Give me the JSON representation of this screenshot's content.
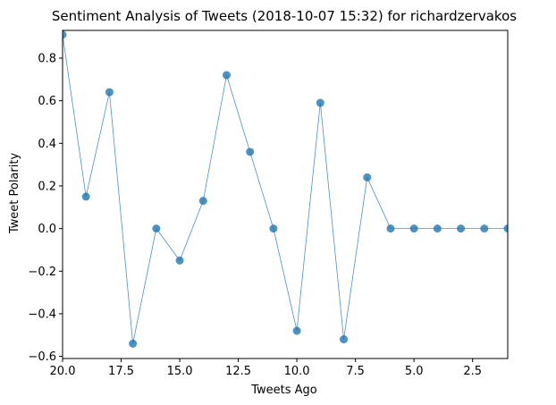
{
  "chart_data": {
    "type": "line",
    "title": "Sentiment Analysis of Tweets (2018-10-07 15:32) for richardzervakos",
    "xlabel": "Tweets Ago",
    "ylabel": "Tweet Polarity",
    "x_inverted": true,
    "xlim": [
      20,
      1
    ],
    "ylim": [
      -0.61,
      0.93
    ],
    "xticks": [
      20.0,
      17.5,
      15.0,
      12.5,
      10.0,
      7.5,
      5.0,
      2.5
    ],
    "xtick_labels": [
      "20.0",
      "17.5",
      "15.0",
      "12.5",
      "10.0",
      "7.5",
      "5.0",
      "2.5"
    ],
    "yticks": [
      -0.6,
      -0.4,
      -0.2,
      0.0,
      0.2,
      0.4,
      0.6,
      0.8
    ],
    "ytick_labels": [
      "−0.6",
      "−0.4",
      "−0.2",
      "0.0",
      "0.2",
      "0.4",
      "0.6",
      "0.8"
    ],
    "grid": false,
    "series": [
      {
        "color": "#1f77b4",
        "x": [
          20,
          19,
          18,
          17,
          16,
          15,
          14,
          13,
          12,
          11,
          10,
          9,
          8,
          7,
          6,
          5,
          4,
          3,
          2,
          1
        ],
        "y": [
          0.91,
          0.15,
          0.64,
          -0.54,
          0.0,
          -0.15,
          0.13,
          0.72,
          0.36,
          0.0,
          -0.48,
          0.59,
          -0.52,
          0.24,
          0.0,
          0.0,
          0.0,
          0.0,
          0.0,
          0.0
        ]
      }
    ]
  }
}
